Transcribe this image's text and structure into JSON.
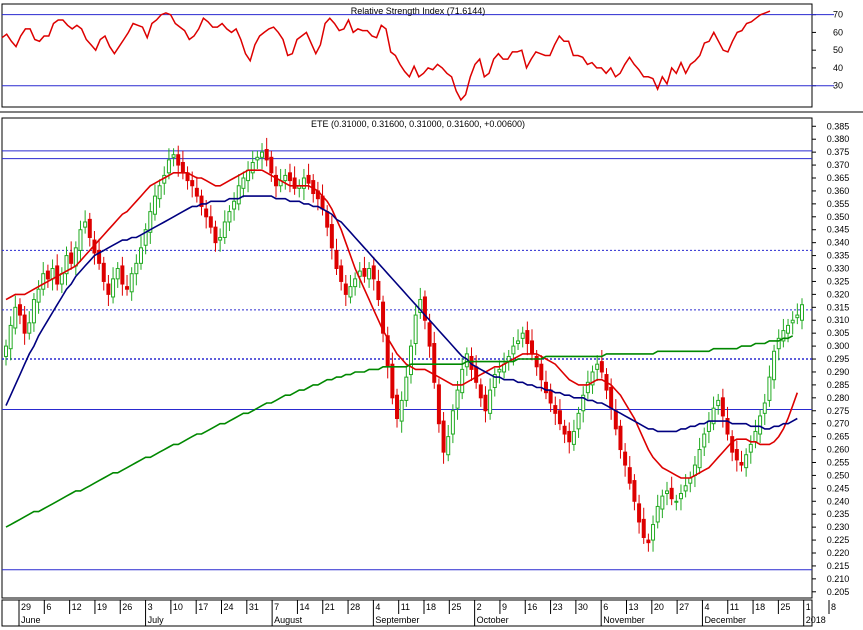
{
  "chart_data": [
    {
      "type": "line",
      "title": "Relative Strength Index (71.6144)",
      "y_ticks": [
        "70",
        "60",
        "50",
        "40",
        "30"
      ],
      "ylim": [
        18,
        76
      ],
      "levels": [
        30,
        70
      ],
      "series": [
        {
          "color": "#dd0000",
          "values": [
            57,
            59,
            55,
            52,
            58,
            62,
            62,
            56,
            55,
            58,
            58,
            65,
            67,
            67,
            64,
            62,
            64,
            62,
            56,
            53,
            50,
            56,
            58,
            52,
            48,
            52,
            56,
            60,
            65,
            64,
            63,
            57,
            65,
            67,
            70,
            71,
            70,
            65,
            63,
            61,
            56,
            58,
            62,
            68,
            66,
            63,
            63,
            65,
            62,
            60,
            62,
            56,
            48,
            44,
            53,
            58,
            60,
            62,
            63,
            60,
            56,
            47,
            48,
            56,
            58,
            60,
            54,
            48,
            53,
            65,
            68,
            65,
            61,
            62,
            67,
            60,
            62,
            61,
            61,
            58,
            57,
            64,
            62,
            49,
            47,
            42,
            38,
            35,
            41,
            35,
            37,
            40,
            39,
            42,
            40,
            37,
            35,
            27,
            22,
            25,
            35,
            42,
            45,
            35,
            37,
            45,
            48,
            45,
            45,
            49,
            49,
            50,
            40,
            45,
            49,
            48,
            47,
            47,
            53,
            58,
            55,
            55,
            47,
            47,
            46,
            42,
            43,
            40,
            40,
            37,
            40,
            35,
            37,
            42,
            46,
            42,
            39,
            35,
            35,
            34,
            28,
            35,
            31,
            40,
            37,
            43,
            37,
            42,
            44,
            47,
            54,
            55,
            60,
            55,
            50,
            49,
            55,
            60,
            61,
            65,
            66,
            68,
            70,
            71,
            72
          ]
        }
      ]
    },
    {
      "type": "candlestick",
      "title": "ETE (0.31000, 0.31600, 0.31000, 0.31600, +0.00600)",
      "y_ticks": [
        "0.385",
        "0.380",
        "0.375",
        "0.370",
        "0.365",
        "0.360",
        "0.355",
        "0.350",
        "0.345",
        "0.340",
        "0.335",
        "0.330",
        "0.325",
        "0.320",
        "0.315",
        "0.310",
        "0.305",
        "0.300",
        "0.295",
        "0.290",
        "0.285",
        "0.280",
        "0.275",
        "0.270",
        "0.265",
        "0.260",
        "0.255",
        "0.250",
        "0.245",
        "0.240",
        "0.235",
        "0.230",
        "0.225",
        "0.220",
        "0.215",
        "0.210",
        "0.205"
      ],
      "ylim": [
        0.2026,
        0.3882
      ],
      "x_ticks": [
        "29",
        "6",
        "12",
        "19",
        "26",
        "3",
        "10",
        "17",
        "24",
        "31",
        "7",
        "14",
        "21",
        "28",
        "4",
        "11",
        "18",
        "25",
        "2",
        "9",
        "16",
        "23",
        "30",
        "6",
        "13",
        "20",
        "27",
        "4",
        "11",
        "18",
        "25",
        "1",
        "8"
      ],
      "months": [
        "June",
        "July",
        "August",
        "September",
        "October",
        "November",
        "December",
        "2018"
      ],
      "closes": [
        0.3,
        0.308,
        0.315,
        0.312,
        0.305,
        0.309,
        0.318,
        0.322,
        0.328,
        0.326,
        0.33,
        0.324,
        0.328,
        0.335,
        0.332,
        0.338,
        0.345,
        0.348,
        0.342,
        0.336,
        0.332,
        0.325,
        0.32,
        0.326,
        0.33,
        0.324,
        0.322,
        0.328,
        0.332,
        0.338,
        0.345,
        0.352,
        0.358,
        0.362,
        0.366,
        0.372,
        0.374,
        0.37,
        0.367,
        0.364,
        0.362,
        0.358,
        0.354,
        0.35,
        0.346,
        0.34,
        0.342,
        0.348,
        0.352,
        0.356,
        0.362,
        0.365,
        0.368,
        0.371,
        0.373,
        0.375,
        0.372,
        0.367,
        0.362,
        0.364,
        0.366,
        0.364,
        0.361,
        0.362,
        0.365,
        0.363,
        0.359,
        0.357,
        0.353,
        0.346,
        0.338,
        0.33,
        0.325,
        0.32,
        0.323,
        0.326,
        0.329,
        0.327,
        0.33,
        0.326,
        0.318,
        0.305,
        0.292,
        0.28,
        0.272,
        0.279,
        0.288,
        0.3,
        0.312,
        0.318,
        0.31,
        0.3,
        0.286,
        0.27,
        0.259,
        0.265,
        0.275,
        0.283,
        0.291,
        0.297,
        0.291,
        0.286,
        0.28,
        0.275,
        0.283,
        0.289,
        0.291,
        0.293,
        0.296,
        0.3,
        0.302,
        0.305,
        0.301,
        0.297,
        0.292,
        0.287,
        0.282,
        0.278,
        0.274,
        0.27,
        0.266,
        0.263,
        0.267,
        0.274,
        0.281,
        0.286,
        0.29,
        0.293,
        0.29,
        0.283,
        0.276,
        0.268,
        0.26,
        0.254,
        0.247,
        0.24,
        0.232,
        0.226,
        0.224,
        0.231,
        0.238,
        0.242,
        0.244,
        0.241,
        0.24,
        0.243,
        0.246,
        0.249,
        0.254,
        0.26,
        0.266,
        0.271,
        0.276,
        0.279,
        0.273,
        0.266,
        0.259,
        0.256,
        0.254,
        0.258,
        0.262,
        0.267,
        0.273,
        0.278,
        0.288,
        0.298,
        0.303,
        0.306,
        0.308,
        0.31,
        0.312,
        0.316
      ],
      "opens": [
        0.296,
        0.299,
        0.307,
        0.316,
        0.312,
        0.305,
        0.309,
        0.317,
        0.322,
        0.329,
        0.326,
        0.331,
        0.324,
        0.328,
        0.336,
        0.331,
        0.337,
        0.346,
        0.349,
        0.341,
        0.337,
        0.332,
        0.324,
        0.319,
        0.326,
        0.331,
        0.323,
        0.321,
        0.328,
        0.332,
        0.339,
        0.344,
        0.351,
        0.357,
        0.363,
        0.367,
        0.373,
        0.374,
        0.371,
        0.367,
        0.364,
        0.361,
        0.358,
        0.353,
        0.35,
        0.346,
        0.341,
        0.342,
        0.348,
        0.353,
        0.355,
        0.361,
        0.364,
        0.367,
        0.372,
        0.373,
        0.376,
        0.373,
        0.366,
        0.362,
        0.364,
        0.367,
        0.365,
        0.361,
        0.361,
        0.366,
        0.364,
        0.36,
        0.358,
        0.352,
        0.347,
        0.337,
        0.331,
        0.324,
        0.319,
        0.323,
        0.327,
        0.33,
        0.326,
        0.331,
        0.325,
        0.317,
        0.304,
        0.293,
        0.281,
        0.271,
        0.279,
        0.289,
        0.301,
        0.313,
        0.319,
        0.309,
        0.301,
        0.285,
        0.271,
        0.258,
        0.266,
        0.276,
        0.282,
        0.292,
        0.296,
        0.292,
        0.285,
        0.281,
        0.274,
        0.284,
        0.29,
        0.29,
        0.294,
        0.297,
        0.301,
        0.303,
        0.306,
        0.302,
        0.296,
        0.293,
        0.286,
        0.283,
        0.277,
        0.275,
        0.269,
        0.267,
        0.262,
        0.268,
        0.275,
        0.282,
        0.285,
        0.291,
        0.294,
        0.289,
        0.284,
        0.275,
        0.269,
        0.259,
        0.253,
        0.248,
        0.239,
        0.233,
        0.225,
        0.225,
        0.232,
        0.237,
        0.243,
        0.245,
        0.24,
        0.241,
        0.244,
        0.247,
        0.25,
        0.253,
        0.261,
        0.267,
        0.27,
        0.277,
        0.28,
        0.272,
        0.265,
        0.26,
        0.255,
        0.253,
        0.259,
        0.263,
        0.266,
        0.274,
        0.279,
        0.287,
        0.299,
        0.302,
        0.305,
        0.309,
        0.311,
        0.31
      ],
      "overlays": [
        {
          "color": "#dd0000",
          "values": [
            0.318,
            0.319,
            0.32,
            0.32,
            0.32,
            0.321,
            0.322,
            0.323,
            0.324,
            0.325,
            0.326,
            0.327,
            0.328,
            0.329,
            0.33,
            0.331,
            0.333,
            0.335,
            0.337,
            0.339,
            0.341,
            0.343,
            0.345,
            0.347,
            0.349,
            0.351,
            0.352,
            0.354,
            0.356,
            0.358,
            0.36,
            0.362,
            0.363,
            0.364,
            0.365,
            0.366,
            0.367,
            0.367,
            0.367,
            0.367,
            0.366,
            0.365,
            0.365,
            0.364,
            0.363,
            0.362,
            0.362,
            0.363,
            0.364,
            0.365,
            0.366,
            0.367,
            0.368,
            0.368,
            0.368,
            0.368,
            0.367,
            0.366,
            0.365,
            0.364,
            0.363,
            0.362,
            0.362,
            0.362,
            0.362,
            0.362,
            0.361,
            0.36,
            0.358,
            0.356,
            0.353,
            0.349,
            0.345,
            0.34,
            0.335,
            0.33,
            0.326,
            0.322,
            0.318,
            0.314,
            0.31,
            0.306,
            0.303,
            0.3,
            0.297,
            0.295,
            0.293,
            0.292,
            0.291,
            0.291,
            0.291,
            0.29,
            0.289,
            0.288,
            0.287,
            0.286,
            0.285,
            0.285,
            0.285,
            0.286,
            0.287,
            0.288,
            0.289,
            0.29,
            0.291,
            0.292,
            0.292,
            0.293,
            0.294,
            0.295,
            0.296,
            0.297,
            0.297,
            0.297,
            0.297,
            0.296,
            0.295,
            0.294,
            0.293,
            0.291,
            0.289,
            0.287,
            0.286,
            0.285,
            0.285,
            0.285,
            0.286,
            0.287,
            0.287,
            0.286,
            0.285,
            0.283,
            0.281,
            0.278,
            0.275,
            0.272,
            0.268,
            0.264,
            0.26,
            0.257,
            0.255,
            0.253,
            0.252,
            0.251,
            0.25,
            0.249,
            0.249,
            0.249,
            0.25,
            0.251,
            0.252,
            0.253,
            0.255,
            0.257,
            0.259,
            0.261,
            0.263,
            0.264,
            0.264,
            0.264,
            0.263,
            0.263,
            0.262,
            0.262,
            0.262,
            0.263,
            0.265,
            0.268,
            0.272,
            0.277,
            0.282
          ]
        },
        {
          "color": "#000080",
          "values": [
            0.277,
            0.281,
            0.285,
            0.289,
            0.293,
            0.297,
            0.3,
            0.304,
            0.307,
            0.31,
            0.313,
            0.316,
            0.319,
            0.322,
            0.324,
            0.327,
            0.329,
            0.331,
            0.333,
            0.335,
            0.336,
            0.337,
            0.338,
            0.339,
            0.34,
            0.341,
            0.341,
            0.342,
            0.342,
            0.343,
            0.344,
            0.345,
            0.346,
            0.347,
            0.348,
            0.349,
            0.35,
            0.351,
            0.352,
            0.353,
            0.354,
            0.354,
            0.355,
            0.355,
            0.356,
            0.356,
            0.356,
            0.356,
            0.357,
            0.357,
            0.357,
            0.358,
            0.358,
            0.358,
            0.358,
            0.358,
            0.358,
            0.358,
            0.357,
            0.357,
            0.357,
            0.356,
            0.356,
            0.356,
            0.355,
            0.355,
            0.354,
            0.354,
            0.353,
            0.352,
            0.351,
            0.349,
            0.348,
            0.346,
            0.344,
            0.342,
            0.34,
            0.338,
            0.336,
            0.334,
            0.332,
            0.33,
            0.328,
            0.326,
            0.324,
            0.322,
            0.32,
            0.318,
            0.316,
            0.314,
            0.312,
            0.31,
            0.308,
            0.306,
            0.304,
            0.302,
            0.3,
            0.298,
            0.296,
            0.295,
            0.293,
            0.292,
            0.291,
            0.29,
            0.289,
            0.288,
            0.288,
            0.287,
            0.287,
            0.287,
            0.286,
            0.286,
            0.285,
            0.285,
            0.284,
            0.284,
            0.283,
            0.283,
            0.282,
            0.282,
            0.281,
            0.281,
            0.28,
            0.28,
            0.28,
            0.279,
            0.279,
            0.278,
            0.278,
            0.277,
            0.276,
            0.275,
            0.274,
            0.273,
            0.272,
            0.271,
            0.27,
            0.269,
            0.268,
            0.268,
            0.267,
            0.267,
            0.267,
            0.267,
            0.267,
            0.268,
            0.268,
            0.269,
            0.269,
            0.27,
            0.27,
            0.271,
            0.271,
            0.271,
            0.271,
            0.271,
            0.27,
            0.27,
            0.27,
            0.27,
            0.269,
            0.269,
            0.269,
            0.268,
            0.268,
            0.269,
            0.269,
            0.27,
            0.27,
            0.271,
            0.272
          ]
        },
        {
          "color": "#008800",
          "values": [
            0.23,
            0.231,
            0.232,
            0.233,
            0.234,
            0.235,
            0.236,
            0.236,
            0.237,
            0.238,
            0.239,
            0.24,
            0.241,
            0.242,
            0.243,
            0.244,
            0.244,
            0.245,
            0.246,
            0.247,
            0.248,
            0.249,
            0.25,
            0.251,
            0.251,
            0.252,
            0.253,
            0.254,
            0.255,
            0.256,
            0.257,
            0.257,
            0.258,
            0.259,
            0.26,
            0.261,
            0.262,
            0.262,
            0.263,
            0.264,
            0.265,
            0.266,
            0.266,
            0.267,
            0.268,
            0.269,
            0.27,
            0.27,
            0.271,
            0.272,
            0.273,
            0.274,
            0.274,
            0.275,
            0.276,
            0.277,
            0.278,
            0.278,
            0.279,
            0.28,
            0.281,
            0.281,
            0.282,
            0.283,
            0.283,
            0.284,
            0.285,
            0.285,
            0.286,
            0.287,
            0.287,
            0.288,
            0.288,
            0.289,
            0.289,
            0.29,
            0.29,
            0.29,
            0.291,
            0.291,
            0.291,
            0.292,
            0.292,
            0.292,
            0.292,
            0.292,
            0.292,
            0.293,
            0.293,
            0.293,
            0.293,
            0.293,
            0.293,
            0.293,
            0.293,
            0.293,
            0.293,
            0.293,
            0.293,
            0.294,
            0.294,
            0.294,
            0.294,
            0.294,
            0.294,
            0.294,
            0.294,
            0.294,
            0.294,
            0.294,
            0.295,
            0.295,
            0.295,
            0.295,
            0.295,
            0.295,
            0.296,
            0.296,
            0.296,
            0.296,
            0.296,
            0.296,
            0.296,
            0.296,
            0.296,
            0.296,
            0.296,
            0.296,
            0.296,
            0.297,
            0.297,
            0.297,
            0.297,
            0.297,
            0.297,
            0.297,
            0.297,
            0.297,
            0.297,
            0.297,
            0.298,
            0.298,
            0.298,
            0.298,
            0.298,
            0.298,
            0.298,
            0.298,
            0.298,
            0.298,
            0.298,
            0.298,
            0.299,
            0.299,
            0.299,
            0.299,
            0.299,
            0.299,
            0.3,
            0.3,
            0.3,
            0.301,
            0.301,
            0.301,
            0.302,
            0.302,
            0.302,
            0.303,
            0.303,
            0.304
          ]
        }
      ],
      "levels": [
        0.3755,
        0.3725,
        0.337,
        0.314,
        0.295,
        0.2755,
        0.2135
      ]
    }
  ]
}
